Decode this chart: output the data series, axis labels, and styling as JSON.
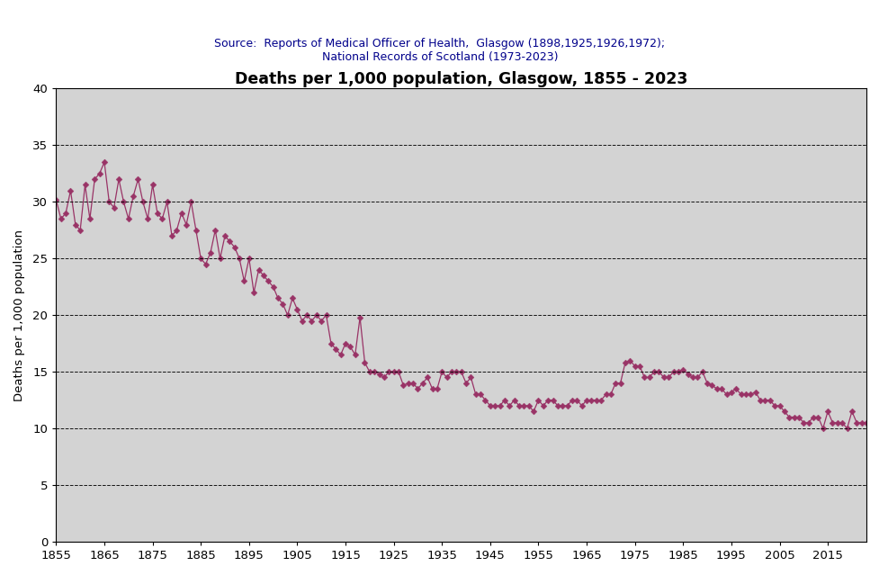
{
  "title": "Deaths per 1,000 population, Glasgow, 1855 - 2023",
  "subtitle_line1": "Source:  Reports of Medical Officer of Health,  Glasgow (1898,1925,1926,1972);",
  "subtitle_line2": "National Records of Scotland (1973-2023)",
  "ylabel": "Deaths per 1,000 population",
  "outer_bg": "#ffffff",
  "plot_bg": "#d3d3d3",
  "line_color": "#993366",
  "marker_color": "#993366",
  "title_color": "#000000",
  "subtitle_color": "#00008B",
  "ylim": [
    0,
    40
  ],
  "yticks": [
    0,
    5,
    10,
    15,
    20,
    25,
    30,
    35,
    40
  ],
  "xlim": [
    1855,
    2023
  ],
  "xticks": [
    1855,
    1865,
    1875,
    1885,
    1895,
    1905,
    1915,
    1925,
    1935,
    1945,
    1955,
    1965,
    1975,
    1985,
    1995,
    2005,
    2015
  ],
  "data": {
    "1855": 30.2,
    "1856": 28.5,
    "1857": 29.0,
    "1858": 31.0,
    "1859": 28.0,
    "1860": 27.5,
    "1861": 31.5,
    "1862": 28.5,
    "1863": 32.0,
    "1864": 32.5,
    "1865": 33.5,
    "1866": 30.0,
    "1867": 29.5,
    "1868": 32.0,
    "1869": 30.0,
    "1870": 28.5,
    "1871": 30.5,
    "1872": 32.0,
    "1873": 30.0,
    "1874": 28.5,
    "1875": 31.5,
    "1876": 29.0,
    "1877": 28.5,
    "1878": 30.0,
    "1879": 27.0,
    "1880": 27.5,
    "1881": 29.0,
    "1882": 28.0,
    "1883": 30.0,
    "1884": 27.5,
    "1885": 25.0,
    "1886": 24.5,
    "1887": 25.5,
    "1888": 27.5,
    "1889": 25.0,
    "1890": 27.0,
    "1891": 26.5,
    "1892": 26.0,
    "1893": 25.0,
    "1894": 23.0,
    "1895": 25.0,
    "1896": 22.0,
    "1897": 24.0,
    "1898": 23.5,
    "1899": 23.0,
    "1900": 22.5,
    "1901": 21.5,
    "1902": 21.0,
    "1903": 20.0,
    "1904": 21.5,
    "1905": 20.5,
    "1906": 19.5,
    "1907": 20.0,
    "1908": 19.5,
    "1909": 20.0,
    "1910": 19.5,
    "1911": 20.0,
    "1912": 17.5,
    "1913": 17.0,
    "1914": 16.5,
    "1915": 17.5,
    "1916": 17.2,
    "1917": 16.5,
    "1918": 19.8,
    "1919": 15.8,
    "1920": 15.0,
    "1921": 15.0,
    "1922": 14.8,
    "1923": 14.5,
    "1924": 15.0,
    "1925": 15.0,
    "1926": 15.0,
    "1927": 13.8,
    "1928": 14.0,
    "1929": 14.0,
    "1930": 13.5,
    "1931": 14.0,
    "1932": 14.5,
    "1933": 13.5,
    "1934": 13.5,
    "1935": 15.0,
    "1936": 14.5,
    "1937": 15.0,
    "1938": 15.0,
    "1939": 15.0,
    "1940": 14.0,
    "1941": 14.5,
    "1942": 13.0,
    "1943": 13.0,
    "1944": 12.5,
    "1945": 12.0,
    "1946": 12.0,
    "1947": 12.0,
    "1948": 12.5,
    "1949": 12.0,
    "1950": 12.5,
    "1951": 12.0,
    "1952": 12.0,
    "1953": 12.0,
    "1954": 11.5,
    "1955": 12.5,
    "1956": 12.0,
    "1957": 12.5,
    "1958": 12.5,
    "1959": 12.0,
    "1960": 12.0,
    "1961": 12.0,
    "1962": 12.5,
    "1963": 12.5,
    "1964": 12.0,
    "1965": 12.5,
    "1966": 12.5,
    "1967": 12.5,
    "1968": 12.5,
    "1969": 13.0,
    "1970": 13.0,
    "1971": 14.0,
    "1972": 14.0,
    "1973": 15.8,
    "1974": 16.0,
    "1975": 15.5,
    "1976": 15.5,
    "1977": 14.5,
    "1978": 14.5,
    "1979": 15.0,
    "1980": 15.0,
    "1981": 14.5,
    "1982": 14.5,
    "1983": 15.0,
    "1984": 15.0,
    "1985": 15.2,
    "1986": 14.8,
    "1987": 14.5,
    "1988": 14.5,
    "1989": 15.0,
    "1990": 14.0,
    "1991": 13.8,
    "1992": 13.5,
    "1993": 13.5,
    "1994": 13.0,
    "1995": 13.2,
    "1996": 13.5,
    "1997": 13.0,
    "1998": 13.0,
    "1999": 13.0,
    "2000": 13.2,
    "2001": 12.5,
    "2002": 12.5,
    "2003": 12.5,
    "2004": 12.0,
    "2005": 12.0,
    "2006": 11.5,
    "2007": 11.0,
    "2008": 11.0,
    "2009": 11.0,
    "2010": 10.5,
    "2011": 10.5,
    "2012": 11.0,
    "2013": 11.0,
    "2014": 10.0,
    "2015": 11.5,
    "2016": 10.5,
    "2017": 10.5,
    "2018": 10.5,
    "2019": 10.0,
    "2020": 11.5,
    "2021": 10.5,
    "2022": 10.5,
    "2023": 10.5
  }
}
